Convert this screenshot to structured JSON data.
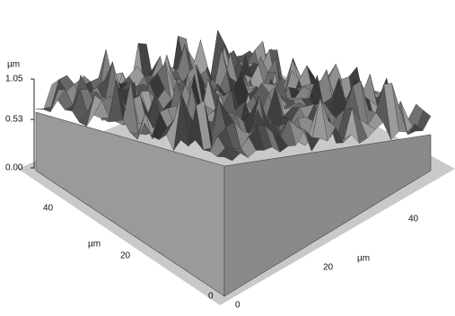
{
  "z_axis": {
    "unit": "µm",
    "ticks": [
      "1.05",
      "0.53",
      "0.00"
    ]
  },
  "left_axis": {
    "unit": "µm",
    "ticks": [
      "40",
      "20",
      "0"
    ]
  },
  "right_axis": {
    "unit": "µm",
    "ticks": [
      "0",
      "20",
      "40"
    ]
  }
}
